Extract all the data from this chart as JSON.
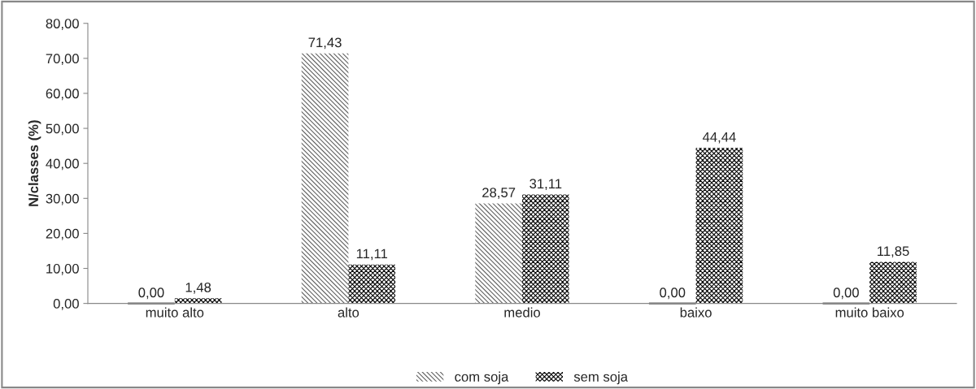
{
  "chart_data": {
    "type": "bar",
    "ylabel": "N/classes (%)",
    "categories": [
      "muito alto",
      "alto",
      "medio",
      "baixo",
      "muito baixo"
    ],
    "series": [
      {
        "name": "com soja",
        "color": "#606060",
        "values": [
          0.0,
          71.43,
          28.57,
          0.0,
          0.0
        ],
        "value_labels": [
          "0,00",
          "71,43",
          "28,57",
          "0,00",
          "0,00"
        ]
      },
      {
        "name": "sem soja",
        "color": "#000000",
        "values": [
          1.48,
          11.11,
          31.11,
          44.44,
          11.85
        ],
        "value_labels": [
          "1,48",
          "11,11",
          "31,11",
          "44,44",
          "11,85"
        ]
      }
    ],
    "ylim": [
      0,
      80
    ],
    "yticks": [
      {
        "value": 0,
        "label": "0,00"
      },
      {
        "value": 10,
        "label": "10,00"
      },
      {
        "value": 20,
        "label": "20,00"
      },
      {
        "value": 30,
        "label": "30,00"
      },
      {
        "value": 40,
        "label": "40,00"
      },
      {
        "value": 50,
        "label": "50,00"
      },
      {
        "value": 60,
        "label": "60,00"
      },
      {
        "value": 70,
        "label": "70,00"
      },
      {
        "value": 80,
        "label": "80,00"
      }
    ],
    "grid": false,
    "legend": "bottom"
  }
}
